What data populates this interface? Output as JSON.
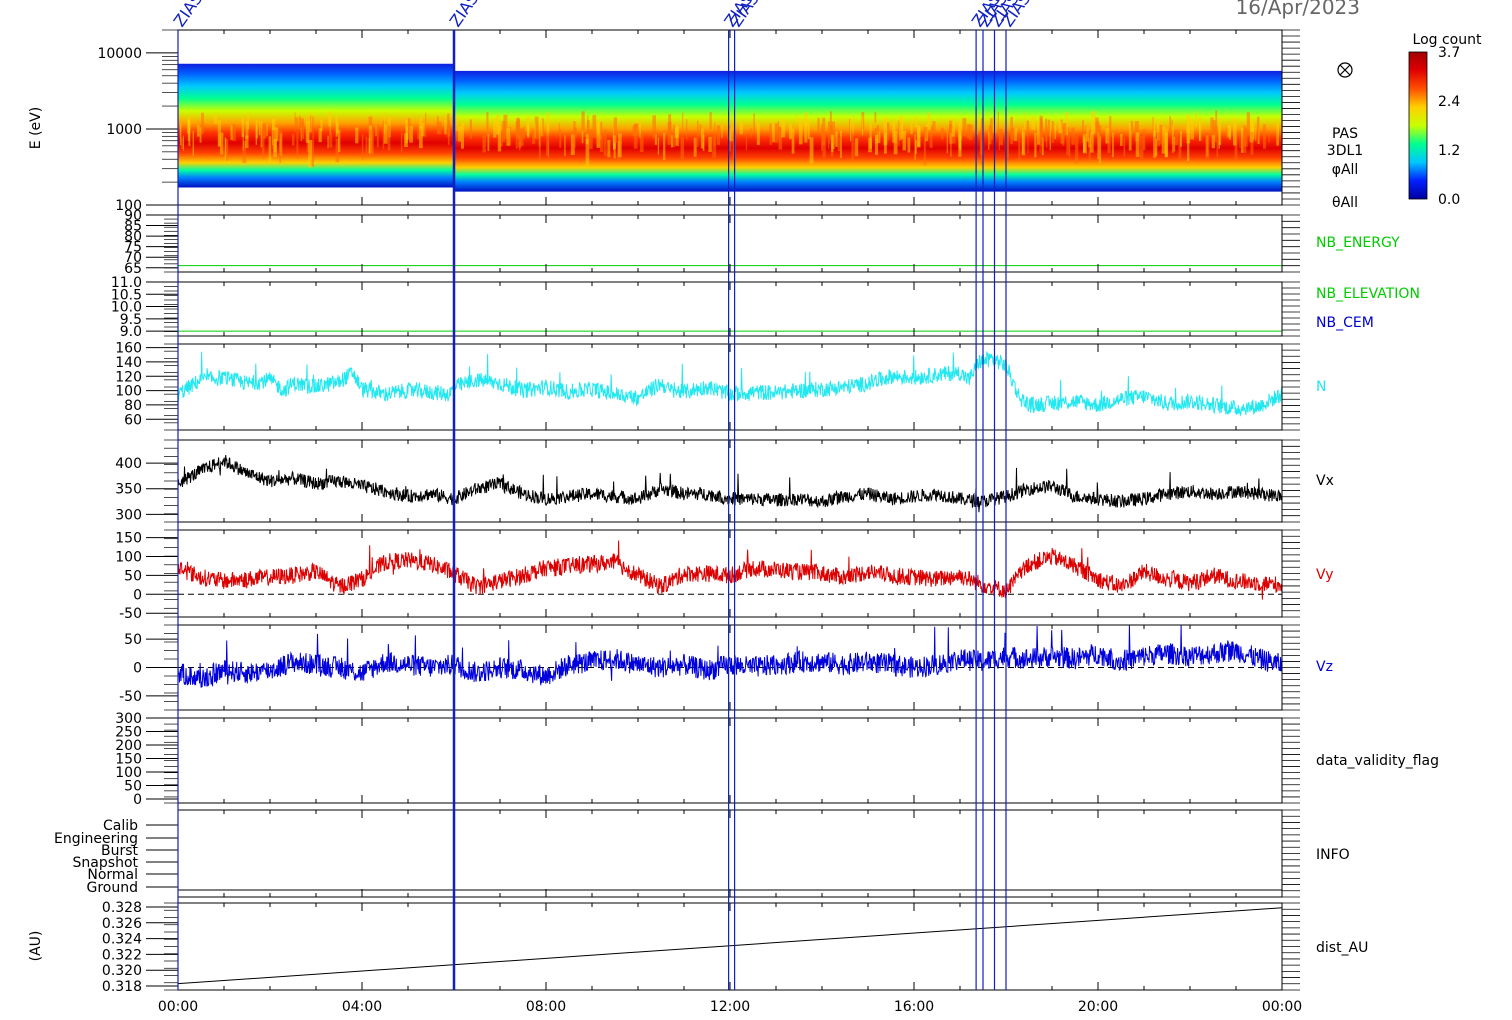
{
  "date_label": "16/Apr/2023",
  "event_marker_label": "ZIAS",
  "event_times_hours": [
    0.0,
    6.0,
    11.97,
    12.1,
    17.35,
    17.5,
    17.75,
    18.0
  ],
  "time_axis": {
    "tick_labels": [
      "00:00",
      "04:00",
      "08:00",
      "12:00",
      "16:00",
      "20:00",
      "00:00"
    ],
    "tick_hours": [
      0,
      4,
      8,
      12,
      16,
      20,
      24
    ]
  },
  "colorbar": {
    "title": "Log count",
    "tick_labels": [
      "3.7",
      "2.4",
      "1.2",
      "0.0"
    ],
    "range": [
      0.0,
      3.7
    ],
    "colors": [
      "#0000a0",
      "#0020ff",
      "#00c8ff",
      "#00ff90",
      "#c8ff00",
      "#ffd000",
      "#ff5000",
      "#e00000",
      "#a00000"
    ]
  },
  "chart_data": [
    {
      "type": "heatmap",
      "ylabel": "E (eV)",
      "yscale": "log",
      "ylim": [
        100,
        20000
      ],
      "y_tick_labels": [
        "10000",
        "1000",
        "100"
      ],
      "x_range_hours": [
        0,
        24
      ],
      "energy_band_top_eV": [
        [
          0,
          7200
        ],
        [
          6,
          5800
        ],
        [
          24,
          5800
        ]
      ],
      "energy_band_bottom_eV": [
        [
          0,
          170
        ],
        [
          6,
          150
        ],
        [
          24,
          150
        ]
      ],
      "peak_energy_eV": 700,
      "side_labels": [
        "PAS",
        "3DL1",
        "φAll",
        "θAll"
      ]
    },
    {
      "type": "line",
      "ylim": [
        63,
        90
      ],
      "y_tick_labels": [
        "90",
        "85",
        "80",
        "75",
        "70",
        "65"
      ],
      "series": [
        {
          "name": "NB_ENERGY",
          "color": "#00cc00",
          "values_const": 66
        }
      ]
    },
    {
      "type": "line",
      "ylim": [
        8.8,
        11.0
      ],
      "y_tick_labels": [
        "11.0",
        "10.5",
        "10.0",
        "9.5",
        "9.0"
      ],
      "series": [
        {
          "name": "NB_ELEVATION",
          "color": "#00cc00",
          "values_const": 9.0
        },
        {
          "name": "NB_CEM",
          "color": "#0000cc",
          "values_const": 11.0
        }
      ]
    },
    {
      "type": "line",
      "ylim": [
        45,
        165
      ],
      "y_tick_labels": [
        "160",
        "140",
        "120",
        "100",
        "80",
        "60"
      ],
      "series": [
        {
          "name": "N",
          "color": "#22e8f0",
          "x": [
            0,
            0.5,
            1,
            1.5,
            2,
            2.3,
            2.5,
            3,
            3.5,
            3.8,
            4,
            4.5,
            5,
            5.5,
            5.9,
            6,
            6.5,
            7,
            7.5,
            8,
            8.5,
            9,
            9.5,
            10,
            10.5,
            10.7,
            11,
            11.5,
            12,
            12.5,
            13,
            13.5,
            14,
            14.5,
            15,
            15.5,
            16,
            16.5,
            17,
            17.2,
            17.4,
            17.7,
            18,
            18.3,
            18.5,
            19,
            19.5,
            20,
            20.5,
            21,
            21.5,
            22,
            22.5,
            23,
            23.5,
            24
          ],
          "values": [
            95,
            115,
            118,
            110,
            115,
            100,
            110,
            105,
            112,
            125,
            102,
            95,
            100,
            98,
            95,
            105,
            115,
            110,
            100,
            105,
            98,
            102,
            95,
            90,
            110,
            100,
            98,
            105,
            95,
            98,
            97,
            100,
            102,
            105,
            110,
            120,
            118,
            122,
            125,
            115,
            140,
            145,
            135,
            90,
            80,
            82,
            85,
            80,
            88,
            92,
            82,
            85,
            80,
            75,
            78,
            95
          ]
        }
      ]
    },
    {
      "type": "line",
      "ylim": [
        285,
        445
      ],
      "y_tick_labels": [
        "400",
        "350",
        "300"
      ],
      "series": [
        {
          "name": "Vx",
          "color": "#000000",
          "x": [
            0,
            0.5,
            1,
            1.5,
            2,
            2.5,
            3,
            3.5,
            4,
            4.5,
            5,
            5.5,
            6,
            6.5,
            7,
            7.5,
            8,
            8.5,
            9,
            9.5,
            10,
            10.5,
            11,
            11.5,
            12,
            12.5,
            13,
            13.5,
            14,
            14.5,
            15,
            15.5,
            16,
            16.5,
            17,
            17.5,
            18,
            18.5,
            19,
            19.5,
            20,
            20.5,
            21,
            21.5,
            22,
            22.5,
            23,
            23.5,
            24
          ],
          "values": [
            360,
            385,
            405,
            380,
            365,
            370,
            360,
            365,
            355,
            345,
            335,
            340,
            330,
            350,
            360,
            340,
            330,
            335,
            340,
            335,
            330,
            350,
            340,
            340,
            330,
            330,
            328,
            330,
            325,
            335,
            340,
            330,
            335,
            340,
            330,
            325,
            335,
            350,
            355,
            335,
            330,
            325,
            330,
            340,
            345,
            340,
            345,
            340,
            335
          ]
        }
      ]
    },
    {
      "type": "line",
      "ylim": [
        -60,
        170
      ],
      "y_tick_labels": [
        "150",
        "100",
        "50",
        "0",
        "-50"
      ],
      "dashed_zero": true,
      "series": [
        {
          "name": "Vy",
          "color": "#dd0000",
          "x": [
            0,
            0.5,
            1,
            1.5,
            2,
            2.5,
            3,
            3.5,
            4,
            4.5,
            5,
            5.5,
            6,
            6.5,
            7,
            7.5,
            8,
            8.5,
            9,
            9.5,
            10,
            10.5,
            11,
            11.5,
            12,
            12.5,
            13,
            13.5,
            14,
            14.5,
            15,
            15.5,
            16,
            16.5,
            17,
            17.5,
            18,
            18.5,
            19,
            19.5,
            20,
            20.5,
            21,
            21.5,
            22,
            22.5,
            23,
            23.5,
            24
          ],
          "values": [
            70,
            45,
            35,
            40,
            45,
            50,
            60,
            20,
            40,
            85,
            90,
            80,
            55,
            20,
            35,
            50,
            70,
            75,
            80,
            85,
            50,
            20,
            55,
            55,
            50,
            70,
            65,
            60,
            55,
            45,
            60,
            50,
            45,
            40,
            50,
            25,
            10,
            80,
            100,
            75,
            40,
            20,
            60,
            40,
            30,
            50,
            35,
            30,
            25
          ]
        }
      ]
    },
    {
      "type": "line",
      "ylim": [
        -75,
        75
      ],
      "y_tick_labels": [
        "50",
        "0",
        "-50"
      ],
      "dashed_zero": true,
      "series": [
        {
          "name": "Vz",
          "color": "#0000dd",
          "x": [
            0,
            0.5,
            1,
            1.5,
            2,
            2.5,
            3,
            3.5,
            4,
            4.5,
            5,
            5.5,
            6,
            6.5,
            7,
            7.5,
            8,
            8.5,
            9,
            9.5,
            10,
            10.5,
            11,
            11.5,
            12,
            12.5,
            13,
            13.5,
            14,
            14.5,
            15,
            15.5,
            16,
            16.5,
            17,
            17.5,
            18,
            18.5,
            19,
            19.5,
            20,
            20.5,
            21,
            21.5,
            22,
            22.5,
            23,
            23.5,
            24
          ],
          "values": [
            -10,
            -20,
            -5,
            -10,
            -5,
            10,
            5,
            0,
            -10,
            10,
            5,
            0,
            5,
            -10,
            0,
            -5,
            -15,
            5,
            10,
            15,
            5,
            0,
            5,
            -5,
            5,
            0,
            5,
            10,
            10,
            5,
            10,
            5,
            0,
            5,
            15,
            10,
            20,
            15,
            20,
            15,
            25,
            10,
            20,
            25,
            20,
            25,
            30,
            15,
            5
          ]
        }
      ]
    },
    {
      "type": "line",
      "ylim": [
        -15,
        300
      ],
      "y_tick_labels": [
        "300",
        "250",
        "200",
        "150",
        "100",
        "50",
        "0"
      ],
      "series": [
        {
          "name": "data_validity_flag",
          "color": "#000000",
          "values": []
        }
      ]
    },
    {
      "type": "line",
      "y_tick_labels": [
        "Calib",
        "Engineering",
        "Burst",
        "Snapshot",
        "Normal",
        "Ground"
      ],
      "series": [
        {
          "name": "INFO",
          "color": "#000000",
          "values": []
        }
      ]
    },
    {
      "type": "line",
      "ylabel": "(AU)",
      "ylim": [
        0.3175,
        0.3285
      ],
      "y_tick_labels": [
        "0.328",
        "0.326",
        "0.324",
        "0.322",
        "0.320",
        "0.318"
      ],
      "series": [
        {
          "name": "dist_AU",
          "color": "#000000",
          "x": [
            0,
            24
          ],
          "values": [
            0.3183,
            0.3279
          ]
        }
      ]
    }
  ]
}
